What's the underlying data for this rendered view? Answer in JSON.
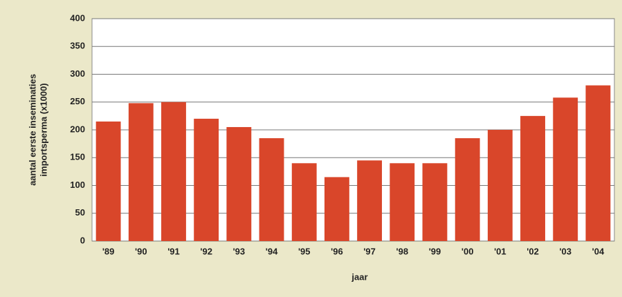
{
  "chart_data": {
    "type": "bar",
    "ylabel": [
      "aantal eerste inseminaties",
      "importsperma (x1000)"
    ],
    "xlabel": "jaar",
    "categories": [
      "'89",
      "'90",
      "'91",
      "'92",
      "'93",
      "'94",
      "'95",
      "'96",
      "'97",
      "'98",
      "'99",
      "'00",
      "'01",
      "'02",
      "'03",
      "'04"
    ],
    "values": [
      215,
      248,
      250,
      220,
      205,
      185,
      140,
      115,
      145,
      140,
      140,
      185,
      200,
      225,
      258,
      280
    ],
    "color": "#d9462a",
    "ylim": [
      0,
      400
    ],
    "yticks": [
      0,
      50,
      100,
      150,
      200,
      250,
      300,
      350,
      400
    ],
    "grid": true
  }
}
